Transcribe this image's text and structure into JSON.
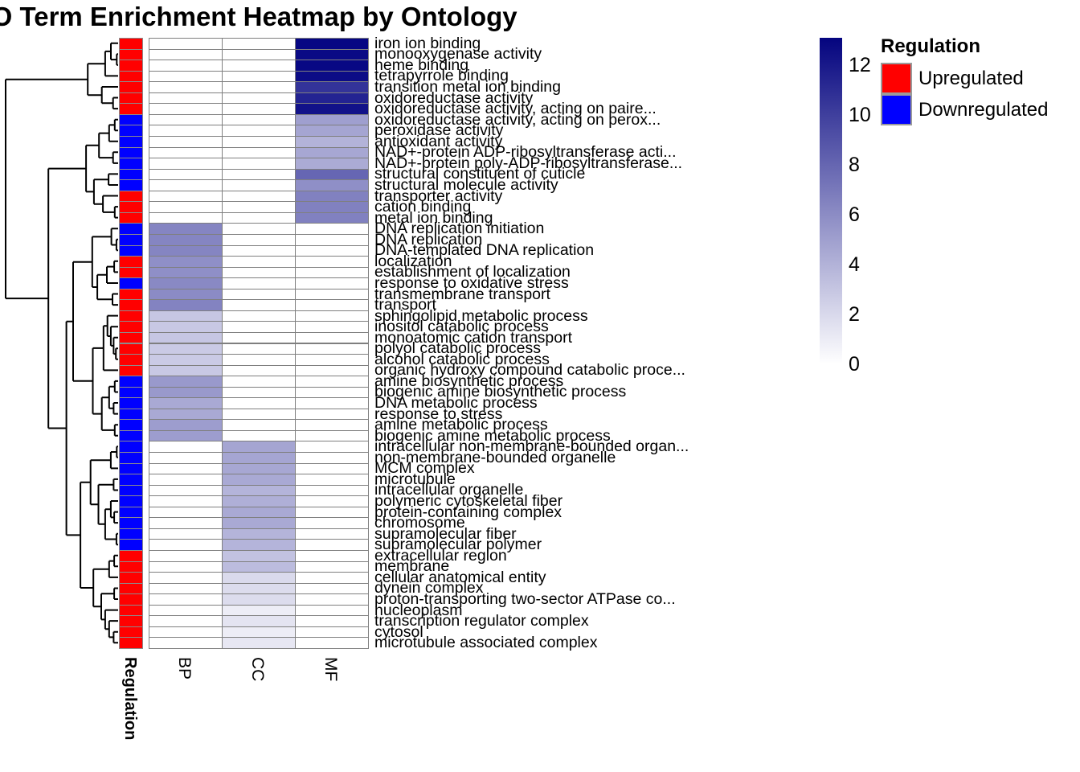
{
  "title": "GO Term Enrichment Heatmap by Ontology",
  "legend": {
    "title": "Regulation",
    "items": [
      {
        "label": "Upregulated",
        "color": "#FF0000"
      },
      {
        "label": "Downregulated",
        "color": "#0000FF"
      }
    ]
  },
  "chart_data": {
    "type": "heatmap",
    "title": "GO Term Enrichment Heatmap by Ontology",
    "columns": [
      "BP",
      "CC",
      "MF"
    ],
    "colorscale": {
      "min": 0,
      "max": 13,
      "min_color": "#FFFFFF",
      "max_color": "#000080",
      "legend_ticks": [
        12,
        10,
        8,
        6,
        4,
        2,
        0
      ]
    },
    "row_annotation": {
      "name": "Regulation",
      "levels": {
        "Upregulated": "#FF0000",
        "Downregulated": "#0000FF"
      }
    },
    "rows": [
      {
        "label": "iron ion binding",
        "regulation": "Upregulated",
        "BP": null,
        "CC": null,
        "MF": 12.7
      },
      {
        "label": "monooxygenase activity",
        "regulation": "Upregulated",
        "BP": null,
        "CC": null,
        "MF": 12.5
      },
      {
        "label": "heme binding",
        "regulation": "Upregulated",
        "BP": null,
        "CC": null,
        "MF": 12.6
      },
      {
        "label": "tetrapyrrole binding",
        "regulation": "Upregulated",
        "BP": null,
        "CC": null,
        "MF": 12.4
      },
      {
        "label": "transition metal ion binding",
        "regulation": "Upregulated",
        "BP": null,
        "CC": null,
        "MF": 10.4
      },
      {
        "label": "oxidoreductase activity",
        "regulation": "Upregulated",
        "BP": null,
        "CC": null,
        "MF": 11.2
      },
      {
        "label": "oxidoreductase activity, acting on paire...",
        "regulation": "Upregulated",
        "BP": null,
        "CC": null,
        "MF": 12.1
      },
      {
        "label": "oxidoreductase activity, acting on perox...",
        "regulation": "Downregulated",
        "BP": null,
        "CC": null,
        "MF": 4.9
      },
      {
        "label": "peroxidase activity",
        "regulation": "Downregulated",
        "BP": null,
        "CC": null,
        "MF": 4.6
      },
      {
        "label": "antioxidant activity",
        "regulation": "Downregulated",
        "BP": null,
        "CC": null,
        "MF": 3.9
      },
      {
        "label": "NAD+-protein ADP-ribosyltransferase acti...",
        "regulation": "Downregulated",
        "BP": null,
        "CC": null,
        "MF": 4.5
      },
      {
        "label": "NAD+-protein poly-ADP-ribosyltransferase...",
        "regulation": "Downregulated",
        "BP": null,
        "CC": null,
        "MF": 4.3
      },
      {
        "label": "structural constituent of cuticle",
        "regulation": "Downregulated",
        "BP": null,
        "CC": null,
        "MF": 7.8
      },
      {
        "label": "structural molecule activity",
        "regulation": "Downregulated",
        "BP": null,
        "CC": null,
        "MF": 5.7
      },
      {
        "label": "transporter activity",
        "regulation": "Upregulated",
        "BP": null,
        "CC": null,
        "MF": 6.4
      },
      {
        "label": "cation binding",
        "regulation": "Upregulated",
        "BP": null,
        "CC": null,
        "MF": 6.4
      },
      {
        "label": "metal ion binding",
        "regulation": "Upregulated",
        "BP": null,
        "CC": null,
        "MF": 6.4
      },
      {
        "label": "DNA replication initiation",
        "regulation": "Downregulated",
        "BP": 6.2,
        "CC": null,
        "MF": null
      },
      {
        "label": "DNA replication",
        "regulation": "Downregulated",
        "BP": 6.2,
        "CC": null,
        "MF": null
      },
      {
        "label": "DNA-templated DNA replication",
        "regulation": "Downregulated",
        "BP": 6.2,
        "CC": null,
        "MF": null
      },
      {
        "label": "localization",
        "regulation": "Upregulated",
        "BP": 5.7,
        "CC": null,
        "MF": null
      },
      {
        "label": "establishment of localization",
        "regulation": "Upregulated",
        "BP": 5.7,
        "CC": null,
        "MF": null
      },
      {
        "label": "response to oxidative stress",
        "regulation": "Downregulated",
        "BP": 6.0,
        "CC": null,
        "MF": null
      },
      {
        "label": "transmembrane transport",
        "regulation": "Upregulated",
        "BP": 5.9,
        "CC": null,
        "MF": null
      },
      {
        "label": "transport",
        "regulation": "Upregulated",
        "BP": 6.3,
        "CC": null,
        "MF": null
      },
      {
        "label": "sphingolipid metabolic process",
        "regulation": "Upregulated",
        "BP": 2.9,
        "CC": null,
        "MF": null
      },
      {
        "label": "inositol catabolic process",
        "regulation": "Upregulated",
        "BP": 2.8,
        "CC": null,
        "MF": null
      },
      {
        "label": "monoatomic cation transport",
        "regulation": "Upregulated",
        "BP": 2.9,
        "CC": null,
        "MF": null
      },
      {
        "label": "polyol catabolic process",
        "regulation": "Upregulated",
        "BP": 2.7,
        "CC": null,
        "MF": null
      },
      {
        "label": "alcohol catabolic process",
        "regulation": "Upregulated",
        "BP": 2.7,
        "CC": null,
        "MF": null
      },
      {
        "label": "organic hydroxy compound catabolic proce...",
        "regulation": "Upregulated",
        "BP": 2.8,
        "CC": null,
        "MF": null
      },
      {
        "label": "amine biosynthetic process",
        "regulation": "Downregulated",
        "BP": 5.2,
        "CC": null,
        "MF": null
      },
      {
        "label": "biogenic amine biosynthetic process",
        "regulation": "Downregulated",
        "BP": 5.2,
        "CC": null,
        "MF": null
      },
      {
        "label": "DNA metabolic process",
        "regulation": "Downregulated",
        "BP": 4.4,
        "CC": null,
        "MF": null
      },
      {
        "label": "response to stress",
        "regulation": "Downregulated",
        "BP": 4.4,
        "CC": null,
        "MF": null
      },
      {
        "label": "amine metabolic process",
        "regulation": "Downregulated",
        "BP": 5.0,
        "CC": null,
        "MF": null
      },
      {
        "label": "biogenic amine metabolic process",
        "regulation": "Downregulated",
        "BP": 5.0,
        "CC": null,
        "MF": null
      },
      {
        "label": "intracellular non-membrane-bounded organ...",
        "regulation": "Downregulated",
        "BP": null,
        "CC": 4.6,
        "MF": null
      },
      {
        "label": "non-membrane-bounded organelle",
        "regulation": "Downregulated",
        "BP": null,
        "CC": 4.6,
        "MF": null
      },
      {
        "label": "MCM complex",
        "regulation": "Downregulated",
        "BP": null,
        "CC": 4.5,
        "MF": null
      },
      {
        "label": "microtubule",
        "regulation": "Downregulated",
        "BP": null,
        "CC": 4.4,
        "MF": null
      },
      {
        "label": "intracellular organelle",
        "regulation": "Downregulated",
        "BP": null,
        "CC": 3.8,
        "MF": null
      },
      {
        "label": "polymeric cytoskeletal fiber",
        "regulation": "Downregulated",
        "BP": null,
        "CC": 4.1,
        "MF": null
      },
      {
        "label": "protein-containing complex",
        "regulation": "Downregulated",
        "BP": null,
        "CC": 4.4,
        "MF": null
      },
      {
        "label": "chromosome",
        "regulation": "Downregulated",
        "BP": null,
        "CC": 4.4,
        "MF": null
      },
      {
        "label": "supramolecular fiber",
        "regulation": "Downregulated",
        "BP": null,
        "CC": 3.8,
        "MF": null
      },
      {
        "label": "supramolecular polymer",
        "regulation": "Downregulated",
        "BP": null,
        "CC": 3.8,
        "MF": null
      },
      {
        "label": "extracellular region",
        "regulation": "Upregulated",
        "BP": null,
        "CC": 3.1,
        "MF": null
      },
      {
        "label": "membrane",
        "regulation": "Upregulated",
        "BP": null,
        "CC": 3.4,
        "MF": null
      },
      {
        "label": "cellular anatomical entity",
        "regulation": "Upregulated",
        "BP": null,
        "CC": 1.9,
        "MF": null
      },
      {
        "label": "dynein complex",
        "regulation": "Upregulated",
        "BP": null,
        "CC": 1.8,
        "MF": null
      },
      {
        "label": "proton-transporting two-sector ATPase co...",
        "regulation": "Upregulated",
        "BP": null,
        "CC": 1.8,
        "MF": null
      },
      {
        "label": "nucleoplasm",
        "regulation": "Upregulated",
        "BP": null,
        "CC": 0.9,
        "MF": null
      },
      {
        "label": "transcription regulator complex",
        "regulation": "Upregulated",
        "BP": null,
        "CC": 1.4,
        "MF": null
      },
      {
        "label": "cytosol",
        "regulation": "Upregulated",
        "BP": null,
        "CC": 0.9,
        "MF": null
      },
      {
        "label": "microtubule associated complex",
        "regulation": "Upregulated",
        "BP": null,
        "CC": 1.2,
        "MF": null
      }
    ],
    "dendrogram": {
      "h": 1.0,
      "c": [
        {
          "h": 0.27,
          "c": [
            {
              "h": 0.115,
              "c": [
                {
                  "h": 0.064,
                  "c": [
                    0,
                    {
                      "h": 0.012,
                      "c": [
                        1,
                        2
                      ]
                    }
                  ]
                },
                3
              ]
            },
            {
              "h": 0.145,
              "c": [
                4,
                {
                  "h": 0.045,
                  "c": [
                    5,
                    6
                  ]
                }
              ]
            }
          ]
        },
        {
          "h": 0.62,
          "c": [
            {
              "h": 0.285,
              "c": [
                {
                  "h": 0.17,
                  "c": [
                    {
                      "h": 0.08,
                      "c": [
                        {
                          "h": 0.03,
                          "c": [
                            7,
                            8
                          ]
                        },
                        9
                      ]
                    },
                    {
                      "h": 0.045,
                      "c": [
                        10,
                        11
                      ]
                    }
                  ]
                },
                {
                  "h": 0.215,
                  "c": [
                    {
                      "h": 0.085,
                      "c": [
                        12,
                        13
                      ]
                    },
                    {
                      "h": 0.135,
                      "c": [
                        14,
                        {
                          "h": 0.03,
                          "c": [
                            15,
                            16
                          ]
                        }
                      ]
                    }
                  ]
                }
              ]
            },
            {
              "h": 0.46,
              "c": [
                {
                  "h": 0.4,
                  "c": [
                    {
                      "h": 0.23,
                      "c": [
                        {
                          "h": 0.06,
                          "c": [
                            17,
                            {
                              "h": 0.015,
                              "c": [
                                18,
                                19
                              ]
                            }
                          ]
                        },
                        {
                          "h": 0.185,
                          "c": [
                            {
                              "h": 0.1,
                              "c": [
                                {
                                  "h": 0.035,
                                  "c": [
                                    20,
                                    21
                                  ]
                                },
                                22
                              ]
                            },
                            {
                              "h": 0.05,
                              "c": [
                                23,
                                24
                              ]
                            }
                          ]
                        }
                      ]
                    },
                    {
                      "h": 0.225,
                      "c": [
                        {
                          "h": 0.13,
                          "c": [
                            {
                              "h": 0.095,
                              "c": [
                                25,
                                {
                                  "h": 0.065,
                                  "c": [
                                    26,
                                    {
                                      "h": 0.04,
                                      "c": [
                                        27,
                                        {
                                          "h": 0.02,
                                          "c": [
                                            28,
                                            29
                                          ]
                                        }
                                      ]
                                    }
                                  ]
                                }
                              ]
                            },
                            30
                          ]
                        },
                        {
                          "h": 0.145,
                          "c": [
                            {
                              "h": 0.08,
                              "c": [
                                {
                                  "h": 0.03,
                                  "c": [
                                    31,
                                    32
                                  ]
                                },
                                {
                                  "h": 0.04,
                                  "c": [
                                    33,
                                    34
                                  ]
                                }
                              ]
                            },
                            {
                              "h": 0.03,
                              "c": [
                                35,
                                36
                              ]
                            }
                          ]
                        }
                      ]
                    }
                  ]
                },
                {
                  "h": 0.335,
                  "c": [
                    {
                      "h": 0.245,
                      "c": [
                        {
                          "h": 0.065,
                          "c": [
                            {
                              "h": 0.012,
                              "c": [
                                37,
                                38
                              ]
                            },
                            39
                          ]
                        },
                        {
                          "h": 0.175,
                          "c": [
                            {
                              "h": 0.04,
                              "c": [
                                40,
                                41
                              ]
                            },
                            {
                              "h": 0.115,
                              "c": [
                                {
                                  "h": 0.065,
                                  "c": [
                                    42,
                                    {
                                      "h": 0.035,
                                      "c": [
                                        43,
                                        44
                                      ]
                                    }
                                  ]
                                },
                                {
                                  "h": 0.015,
                                  "c": [
                                    45,
                                    46
                                  ]
                                }
                              ]
                            }
                          ]
                        }
                      ]
                    },
                    {
                      "h": 0.22,
                      "c": [
                        {
                          "h": 0.08,
                          "c": [
                            {
                              "h": 0.035,
                              "c": [
                                47,
                                48
                              ]
                            },
                            49
                          ]
                        },
                        {
                          "h": 0.15,
                          "c": [
                            {
                              "h": 0.035,
                              "c": [
                                50,
                                51
                              ]
                            },
                            {
                              "h": 0.115,
                              "c": [
                                52,
                                {
                                  "h": 0.08,
                                  "c": [
                                    53,
                                    {
                                      "h": 0.04,
                                      "c": [
                                        54,
                                        55
                                      ]
                                    }
                                  ]
                                }
                              ]
                            }
                          ]
                        }
                      ]
                    }
                  ]
                }
              ]
            }
          ]
        }
      ]
    }
  }
}
